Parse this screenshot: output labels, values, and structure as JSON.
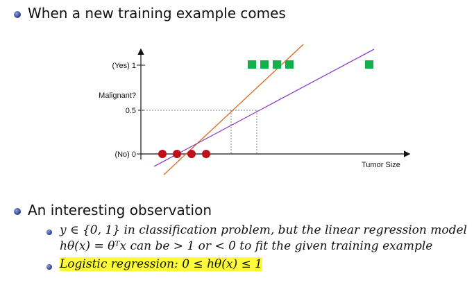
{
  "slide": {
    "heading": "When a new training example comes",
    "section": "An interesting observation",
    "sub1_line1": "y ∈ {0, 1} in classification problem, but the linear regression model",
    "sub1_line2": "hθ(x) = θᵀx can be > 1 or < 0 to fit the given training example",
    "sub2": "Logistic regression: 0 ≤ hθ(x) ≤ 1"
  },
  "chart": {
    "y_yes": "(Yes) 1",
    "y_malignant": "Malignant?",
    "y_half": "0.5",
    "y_no": "(No) 0",
    "x_label": "Tumor Size",
    "colors": {
      "positive": "#12b04a",
      "negative": "#c0101a",
      "fit_old": "#d8691e",
      "fit_new": "#8d3ec8"
    }
  },
  "chart_data": {
    "type": "scatter",
    "xlabel": "Tumor Size",
    "ylabel": "Malignant?",
    "yticks": [
      "(No) 0",
      "0.5",
      "(Yes) 1"
    ],
    "series": [
      {
        "marker": "circle",
        "values": [
          0,
          0,
          0,
          0
        ]
      },
      {
        "marker": "square",
        "values": [
          1,
          1,
          1,
          1,
          1
        ]
      }
    ]
  }
}
